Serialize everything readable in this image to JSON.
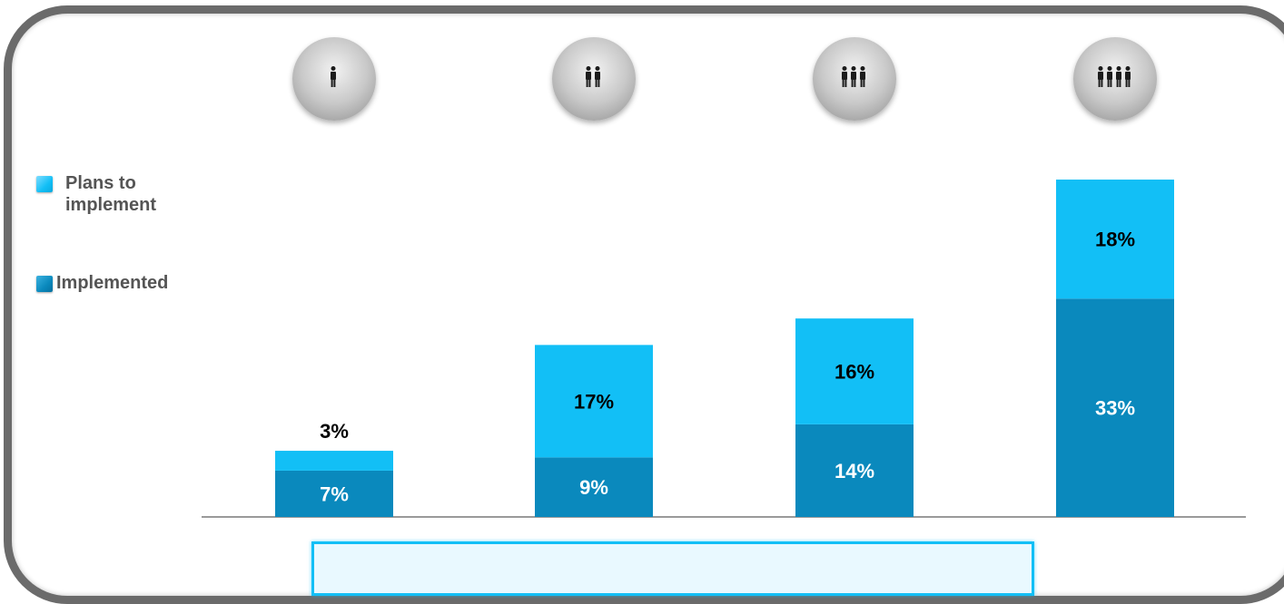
{
  "legend": {
    "plans": "Plans to implement",
    "implemented": "Implemented"
  },
  "groups": [
    {
      "icon": "one-person-icon",
      "people": 1
    },
    {
      "icon": "two-people-icon",
      "people": 2
    },
    {
      "icon": "three-people-icon",
      "people": 3
    },
    {
      "icon": "four-people-icon",
      "people": 4
    }
  ],
  "colors": {
    "implemented": "#0a89bd",
    "plans": "#12bff6",
    "axis": "#9a9a9a",
    "frame": "#6b6b6b",
    "icon_figure": "#1c1c1c"
  },
  "chart_data": {
    "type": "bar",
    "stacked": true,
    "categories": [
      "",
      "",
      "",
      ""
    ],
    "series": [
      {
        "name": "Implemented",
        "values": [
          7,
          9,
          14,
          33
        ],
        "labels": [
          "7%",
          "9%",
          "14%",
          "33%"
        ],
        "label_color": "#ffffff"
      },
      {
        "name": "Plans to implement",
        "values": [
          3,
          17,
          16,
          18
        ],
        "labels": [
          "3%",
          "17%",
          "16%",
          "18%"
        ],
        "label_color": "#000000"
      }
    ],
    "title": "",
    "xlabel": "",
    "ylabel": "",
    "ylim": [
      0,
      51
    ],
    "grid": false,
    "legend_position": "left"
  }
}
